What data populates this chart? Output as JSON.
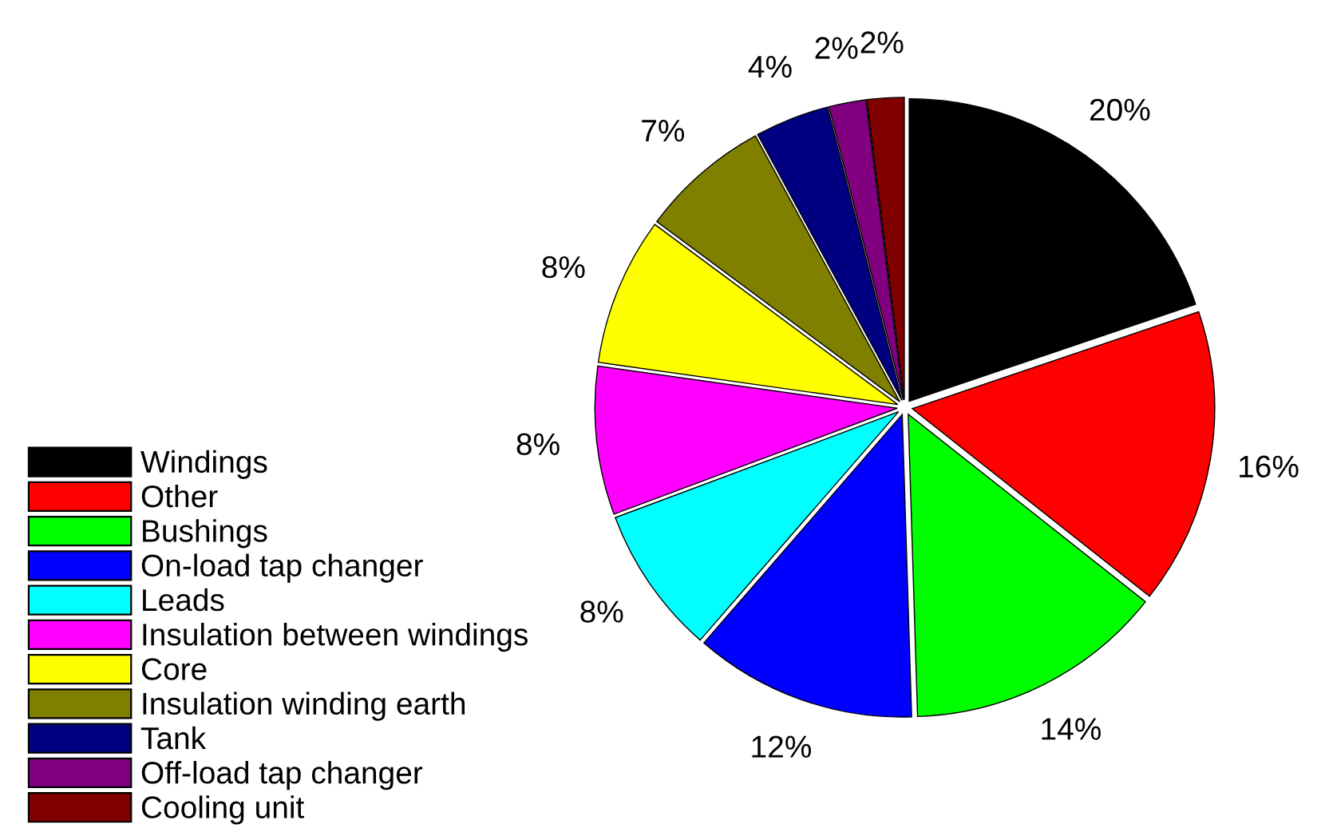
{
  "chart_data": {
    "type": "pie",
    "categories": [
      "Windings",
      "Other",
      "Bushings",
      "On-load tap changer",
      "Leads",
      "Insulation between windings",
      "Core",
      "Insulation winding earth",
      "Tank",
      "Off-load tap changer",
      "Cooling unit"
    ],
    "values": [
      20,
      16,
      14,
      12,
      8,
      8,
      8,
      7,
      4,
      2,
      2
    ],
    "value_labels": [
      "20%",
      "16%",
      "14%",
      "12%",
      "8%",
      "8%",
      "8%",
      "7%",
      "4%",
      "2%",
      "2%"
    ],
    "colors": [
      "#000000",
      "#ff0000",
      "#00ff00",
      "#0000ff",
      "#00ffff",
      "#ff00ff",
      "#ffff00",
      "#808000",
      "#000080",
      "#800080",
      "#800000"
    ],
    "legend": "left"
  }
}
